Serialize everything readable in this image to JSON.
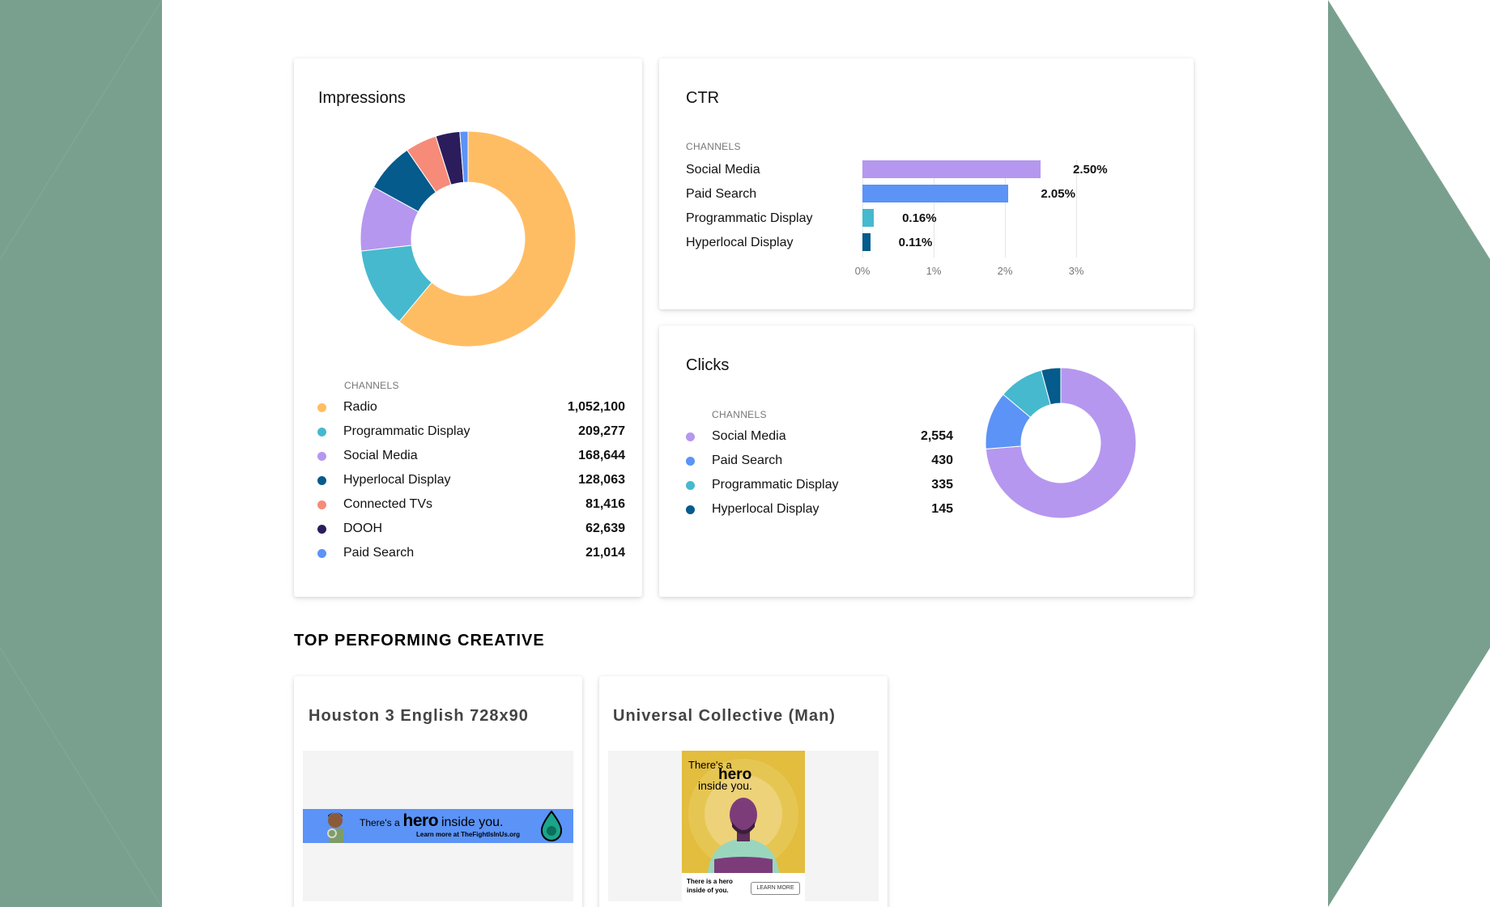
{
  "impressions": {
    "title": "Impressions",
    "legend_header": "CHANNELS",
    "items": [
      {
        "label": "Radio",
        "value": "1,052,100",
        "raw": 1052100,
        "color": "#FFBD63"
      },
      {
        "label": "Programmatic Display",
        "value": "209,277",
        "raw": 209277,
        "color": "#46B9CE"
      },
      {
        "label": "Social Media",
        "value": "168,644",
        "raw": 168644,
        "color": "#B597EF"
      },
      {
        "label": "Hyperlocal Display",
        "value": "128,063",
        "raw": 128063,
        "color": "#045B8C"
      },
      {
        "label": "Connected TVs",
        "value": "81,416",
        "raw": 81416,
        "color": "#F68B79"
      },
      {
        "label": "DOOH",
        "value": "62,639",
        "raw": 62639,
        "color": "#2B1D5C"
      },
      {
        "label": "Paid Search",
        "value": "21,014",
        "raw": 21014,
        "color": "#5B93F7"
      }
    ]
  },
  "ctr": {
    "title": "CTR",
    "legend_header": "CHANNELS",
    "items": [
      {
        "label": "Social Media",
        "value": "2.50%",
        "raw": 2.5,
        "color": "#B597EF"
      },
      {
        "label": "Paid Search",
        "value": "2.05%",
        "raw": 2.05,
        "color": "#5B93F7"
      },
      {
        "label": "Programmatic Display",
        "value": "0.16%",
        "raw": 0.16,
        "color": "#46B9CE"
      },
      {
        "label": "Hyperlocal Display",
        "value": "0.11%",
        "raw": 0.11,
        "color": "#045B8C"
      }
    ],
    "ticks": [
      "0%",
      "1%",
      "2%",
      "3%"
    ]
  },
  "clicks": {
    "title": "Clicks",
    "legend_header": "CHANNELS",
    "items": [
      {
        "label": "Social Media",
        "value": "2,554",
        "raw": 2554,
        "color": "#B597EF"
      },
      {
        "label": "Paid Search",
        "value": "430",
        "raw": 430,
        "color": "#5B93F7"
      },
      {
        "label": "Programmatic Display",
        "value": "335",
        "raw": 335,
        "color": "#46B9CE"
      },
      {
        "label": "Hyperlocal Display",
        "value": "145",
        "raw": 145,
        "color": "#045B8C"
      }
    ]
  },
  "creative_section": {
    "title": "TOP PERFORMING CREATIVE",
    "items": [
      {
        "title": "Houston 3 English 728x90"
      },
      {
        "title": "Universal Collective (Man)"
      }
    ]
  },
  "ads": {
    "banner": {
      "headline_pre": "There's a",
      "headline_hero": "hero",
      "headline_post": "inside you.",
      "sub": "Learn more at TheFightIsInUs.org"
    },
    "square": {
      "line1": "There's a",
      "line2": "hero",
      "line3": "inside you.",
      "caption": "There is a hero inside of you.",
      "cta": "LEARN MORE"
    }
  },
  "colors": {
    "side_deco": "#79A08E",
    "banner_bg": "#5B93F7",
    "square_bg": "#E2BD3E"
  },
  "chart_data": [
    {
      "type": "pie",
      "title": "Impressions",
      "categories": [
        "Radio",
        "Programmatic Display",
        "Social Media",
        "Hyperlocal Display",
        "Connected TVs",
        "DOOH",
        "Paid Search"
      ],
      "values": [
        1052100,
        209277,
        168644,
        128063,
        81416,
        62639,
        21014
      ]
    },
    {
      "type": "bar",
      "title": "CTR",
      "categories": [
        "Social Media",
        "Paid Search",
        "Programmatic Display",
        "Hyperlocal Display"
      ],
      "values": [
        2.5,
        2.05,
        0.16,
        0.11
      ],
      "xlim": [
        0,
        3
      ],
      "xlabel": "",
      "ylabel": "CHANNELS"
    },
    {
      "type": "pie",
      "title": "Clicks",
      "categories": [
        "Social Media",
        "Paid Search",
        "Programmatic Display",
        "Hyperlocal Display"
      ],
      "values": [
        2554,
        430,
        335,
        145
      ]
    }
  ]
}
